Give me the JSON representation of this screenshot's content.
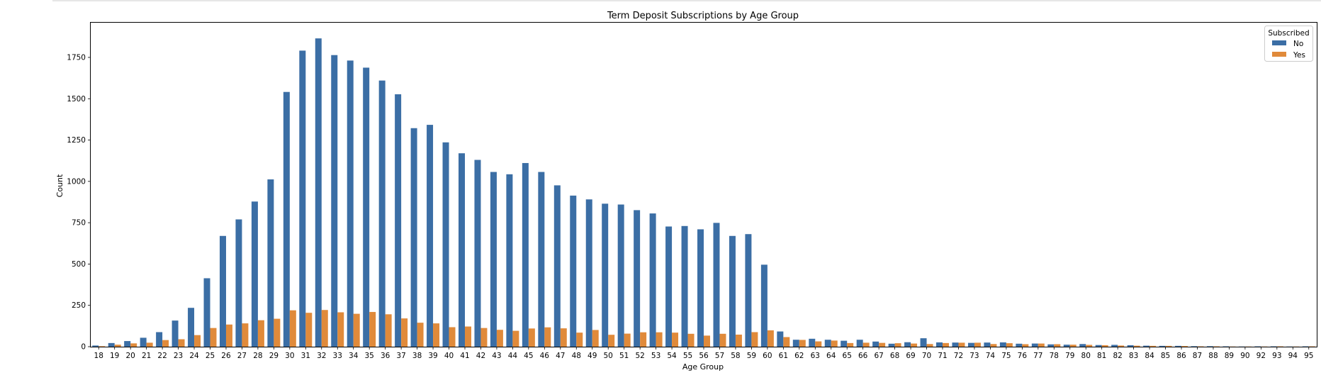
{
  "chart_data": {
    "type": "bar",
    "title": "Term Deposit Subscriptions by Age Group",
    "xlabel": "Age Group",
    "ylabel": "Count",
    "ylim": [
      0,
      1960
    ],
    "yticks": [
      0,
      250,
      500,
      750,
      1000,
      1250,
      1500,
      1750
    ],
    "grid": false,
    "legend": {
      "title": "Subscribed",
      "placement": "top-right"
    },
    "categories": [
      "18",
      "19",
      "20",
      "21",
      "22",
      "23",
      "24",
      "25",
      "26",
      "27",
      "28",
      "29",
      "30",
      "31",
      "32",
      "33",
      "34",
      "35",
      "36",
      "37",
      "38",
      "39",
      "40",
      "41",
      "42",
      "43",
      "44",
      "45",
      "46",
      "47",
      "48",
      "49",
      "50",
      "51",
      "52",
      "53",
      "54",
      "55",
      "56",
      "57",
      "58",
      "59",
      "60",
      "61",
      "62",
      "63",
      "64",
      "65",
      "66",
      "67",
      "68",
      "69",
      "70",
      "71",
      "72",
      "73",
      "74",
      "75",
      "76",
      "77",
      "78",
      "79",
      "80",
      "81",
      "82",
      "83",
      "84",
      "85",
      "86",
      "87",
      "88",
      "89",
      "90",
      "92",
      "93",
      "94",
      "95"
    ],
    "series": [
      {
        "name": "No",
        "color": "#3b6ea5",
        "values": [
          7,
          22,
          34,
          54,
          88,
          158,
          235,
          414,
          670,
          770,
          878,
          1012,
          1541,
          1791,
          1865,
          1764,
          1731,
          1688,
          1610,
          1527,
          1322,
          1342,
          1236,
          1170,
          1130,
          1057,
          1043,
          1111,
          1057,
          976,
          914,
          891,
          865,
          860,
          826,
          806,
          727,
          730,
          710,
          749,
          670,
          681,
          496,
          92,
          42,
          48,
          42,
          36,
          42,
          31,
          18,
          27,
          51,
          26,
          25,
          23,
          25,
          26,
          18,
          19,
          14,
          12,
          16,
          10,
          11,
          9,
          6,
          5,
          5,
          3,
          3,
          2,
          1,
          2,
          2,
          1,
          2
        ]
      },
      {
        "name": "Yes",
        "color": "#e08a3a",
        "values": [
          3,
          12,
          20,
          24,
          40,
          45,
          70,
          113,
          134,
          141,
          160,
          169,
          220,
          205,
          222,
          208,
          199,
          210,
          196,
          171,
          145,
          141,
          118,
          122,
          113,
          102,
          96,
          110,
          117,
          111,
          85,
          101,
          72,
          79,
          87,
          87,
          85,
          78,
          67,
          78,
          73,
          88,
          99,
          58,
          41,
          32,
          37,
          22,
          24,
          23,
          21,
          19,
          16,
          22,
          24,
          24,
          16,
          21,
          15,
          19,
          15,
          12,
          11,
          9,
          7,
          6,
          5,
          5,
          4,
          2,
          2,
          1,
          1,
          1,
          2,
          1,
          2
        ]
      }
    ]
  }
}
